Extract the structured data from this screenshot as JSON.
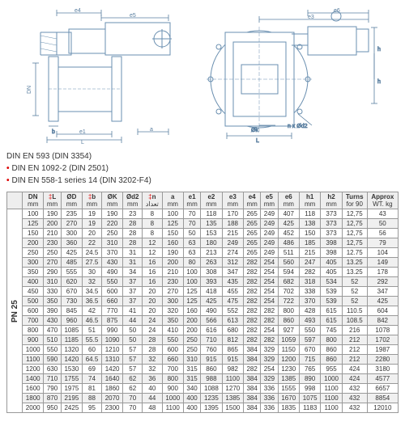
{
  "diagram_labels": {
    "left": {
      "e4": "e4",
      "e5": "e5",
      "dn": "DN",
      "b": "b",
      "e1": "e1",
      "L": "L",
      "a": "a"
    },
    "right": {
      "e6": "e6",
      "e3": "e3",
      "h1": "h1",
      "h2": "h2",
      "ok": "Øk",
      "od2": "n x Ød2",
      "L": "L"
    }
  },
  "standards": [
    {
      "bullet": "",
      "text": "DIN EN 593 (DIN 3354)"
    },
    {
      "bullet": "•",
      "text": "DIN EN 1092-2 (DIN 2501)"
    },
    {
      "bullet": "•",
      "text": "DIN EN 558-1 series 14 (DIN 3202-F4)"
    }
  ],
  "pn_label": "PN 25",
  "headers": [
    {
      "label": "DN",
      "unit": "mm",
      "arrow": false
    },
    {
      "label": "L",
      "unit": "mm",
      "arrow": true
    },
    {
      "label": "ØD",
      "unit": "mm",
      "arrow": false
    },
    {
      "label": "b",
      "unit": "mm",
      "arrow": true
    },
    {
      "label": "ØK",
      "unit": "mm",
      "arrow": false
    },
    {
      "label": "Ød2",
      "unit": "mm",
      "arrow": false
    },
    {
      "label": "n",
      "unit": "تعداد",
      "arrow": true
    },
    {
      "label": "a",
      "unit": "mm",
      "arrow": false
    },
    {
      "label": "e1",
      "unit": "mm",
      "arrow": false
    },
    {
      "label": "e2",
      "unit": "mm",
      "arrow": false
    },
    {
      "label": "e3",
      "unit": "mm",
      "arrow": false
    },
    {
      "label": "e4",
      "unit": "mm",
      "arrow": false
    },
    {
      "label": "e5",
      "unit": "mm",
      "arrow": false
    },
    {
      "label": "e6",
      "unit": "mm",
      "arrow": false
    },
    {
      "label": "h1",
      "unit": "mm",
      "arrow": false
    },
    {
      "label": "h2",
      "unit": "mm",
      "arrow": false
    },
    {
      "label": "Turns",
      "unit": "for 90",
      "arrow": false
    },
    {
      "label": "Approx",
      "unit": "WT. kg",
      "arrow": false
    }
  ],
  "rows": [
    [
      "100",
      "190",
      "235",
      "19",
      "190",
      "23",
      "8",
      "100",
      "70",
      "118",
      "170",
      "265",
      "249",
      "407",
      "118",
      "373",
      "12,75",
      "43"
    ],
    [
      "125",
      "200",
      "270",
      "19",
      "220",
      "28",
      "8",
      "125",
      "70",
      "135",
      "188",
      "265",
      "249",
      "425",
      "138",
      "373",
      "12,75",
      "50"
    ],
    [
      "150",
      "210",
      "300",
      "20",
      "250",
      "28",
      "8",
      "150",
      "50",
      "153",
      "215",
      "265",
      "249",
      "452",
      "150",
      "373",
      "12,75",
      "56"
    ],
    [
      "200",
      "230",
      "360",
      "22",
      "310",
      "28",
      "12",
      "160",
      "63",
      "180",
      "249",
      "265",
      "249",
      "486",
      "185",
      "398",
      "12,75",
      "79"
    ],
    [
      "250",
      "250",
      "425",
      "24.5",
      "370",
      "31",
      "12",
      "190",
      "63",
      "213",
      "274",
      "265",
      "249",
      "511",
      "215",
      "398",
      "12.75",
      "104"
    ],
    [
      "300",
      "270",
      "485",
      "27.5",
      "430",
      "31",
      "16",
      "200",
      "80",
      "263",
      "312",
      "282",
      "254",
      "560",
      "247",
      "405",
      "13.25",
      "149"
    ],
    [
      "350",
      "290",
      "555",
      "30",
      "490",
      "34",
      "16",
      "210",
      "100",
      "308",
      "347",
      "282",
      "254",
      "594",
      "282",
      "405",
      "13.25",
      "178"
    ],
    [
      "400",
      "310",
      "620",
      "32",
      "550",
      "37",
      "16",
      "230",
      "100",
      "393",
      "435",
      "282",
      "254",
      "682",
      "318",
      "534",
      "52",
      "292"
    ],
    [
      "450",
      "330",
      "670",
      "34.5",
      "600",
      "37",
      "20",
      "270",
      "125",
      "418",
      "455",
      "282",
      "254",
      "702",
      "338",
      "539",
      "52",
      "347"
    ],
    [
      "500",
      "350",
      "730",
      "36.5",
      "660",
      "37",
      "20",
      "300",
      "125",
      "425",
      "475",
      "282",
      "254",
      "722",
      "370",
      "539",
      "52",
      "425"
    ],
    [
      "600",
      "390",
      "845",
      "42",
      "770",
      "41",
      "20",
      "320",
      "160",
      "490",
      "552",
      "282",
      "282",
      "800",
      "428",
      "615",
      "110.5",
      "604"
    ],
    [
      "700",
      "430",
      "960",
      "46.5",
      "875",
      "44",
      "24",
      "350",
      "200",
      "566",
      "613",
      "282",
      "282",
      "860",
      "493",
      "615",
      "108.5",
      "842"
    ],
    [
      "800",
      "470",
      "1085",
      "51",
      "990",
      "50",
      "24",
      "410",
      "200",
      "616",
      "680",
      "282",
      "254",
      "927",
      "550",
      "745",
      "216",
      "1078"
    ],
    [
      "900",
      "510",
      "1185",
      "55.5",
      "1090",
      "50",
      "28",
      "550",
      "250",
      "710",
      "812",
      "282",
      "282",
      "1059",
      "597",
      "800",
      "212",
      "1702"
    ],
    [
      "1000",
      "550",
      "1320",
      "60",
      "1210",
      "57",
      "28",
      "600",
      "250",
      "760",
      "865",
      "384",
      "329",
      "1150",
      "670",
      "860",
      "212",
      "1987"
    ],
    [
      "1100",
      "590",
      "1420",
      "64.5",
      "1310",
      "57",
      "32",
      "660",
      "310",
      "915",
      "915",
      "384",
      "329",
      "1200",
      "715",
      "860",
      "212",
      "2280"
    ],
    [
      "1200",
      "630",
      "1530",
      "69",
      "1420",
      "57",
      "32",
      "700",
      "315",
      "860",
      "982",
      "282",
      "254",
      "1230",
      "765",
      "955",
      "424",
      "3180"
    ],
    [
      "1400",
      "710",
      "1755",
      "74",
      "1640",
      "62",
      "36",
      "800",
      "315",
      "988",
      "1100",
      "384",
      "329",
      "1385",
      "890",
      "1000",
      "424",
      "4577"
    ],
    [
      "1600",
      "790",
      "1975",
      "81",
      "1860",
      "62",
      "40",
      "900",
      "340",
      "1088",
      "1270",
      "384",
      "336",
      "1555",
      "998",
      "1100",
      "432",
      "6657"
    ],
    [
      "1800",
      "870",
      "2195",
      "88",
      "2070",
      "70",
      "44",
      "1000",
      "400",
      "1235",
      "1385",
      "384",
      "336",
      "1670",
      "1075",
      "1100",
      "432",
      "8854"
    ],
    [
      "2000",
      "950",
      "2425",
      "95",
      "2300",
      "70",
      "48",
      "1100",
      "400",
      "1395",
      "1500",
      "384",
      "336",
      "1835",
      "1183",
      "1100",
      "432",
      "12010"
    ]
  ],
  "colors": {
    "dim_line": "#5a7fa0",
    "body_line": "#6a8fb0"
  }
}
